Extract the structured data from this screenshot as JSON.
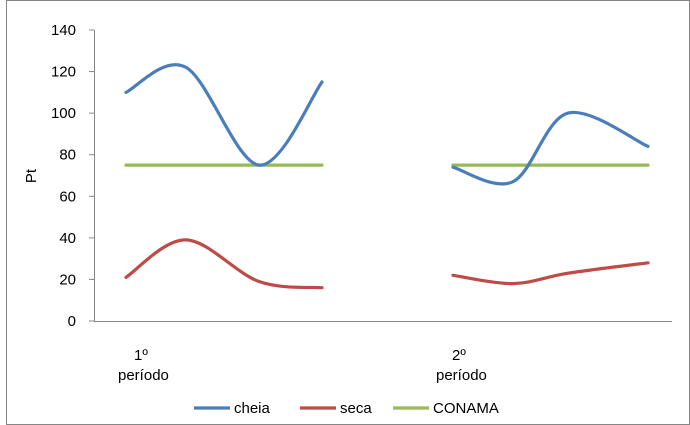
{
  "chart_data": {
    "type": "line",
    "ylabel": "Pt",
    "ylim": [
      0,
      140
    ],
    "yticks": [
      0,
      20,
      40,
      60,
      80,
      100,
      120,
      140
    ],
    "category_groups": [
      {
        "lines": [
          "1º",
          "período"
        ]
      },
      {
        "lines": [
          "2º",
          "período"
        ]
      }
    ],
    "legend_position": "bottom",
    "grid": false,
    "series": [
      {
        "name": "cheia",
        "color": "#4a7ebb",
        "groups": [
          [
            110,
            122,
            75,
            115
          ],
          [
            74,
            67,
            100,
            84
          ]
        ]
      },
      {
        "name": "seca",
        "color": "#be4b48",
        "groups": [
          [
            21,
            39,
            19,
            16
          ],
          [
            22,
            18,
            23,
            28
          ]
        ]
      },
      {
        "name": "CONAMA",
        "color": "#98b954",
        "groups": [
          [
            75,
            75,
            75,
            75
          ],
          [
            75,
            75,
            75,
            75
          ]
        ]
      }
    ]
  }
}
